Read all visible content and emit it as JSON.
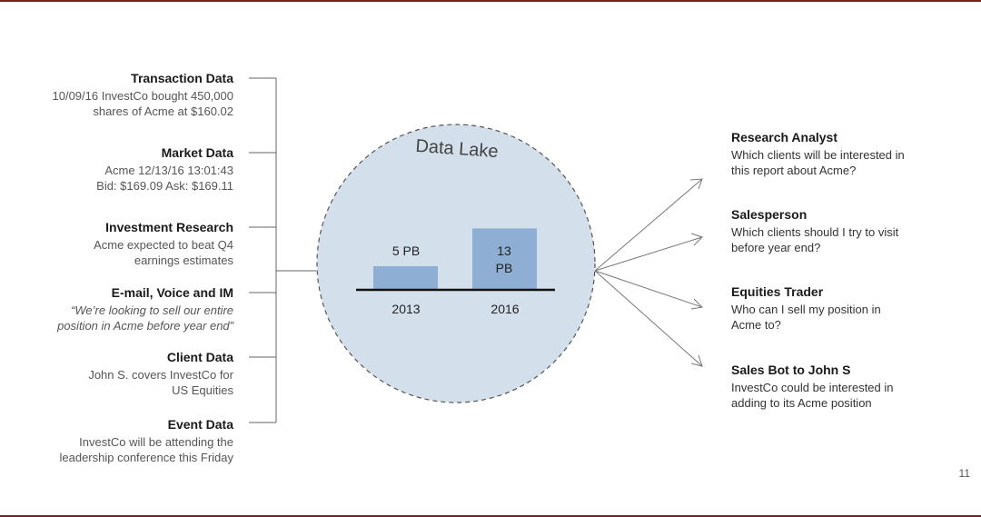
{
  "sources": [
    {
      "title": "Transaction Data",
      "lines": [
        "10/09/16 InvestCo bought 450,000",
        "shares of Acme at $160.02"
      ],
      "italic": false
    },
    {
      "title": "Market Data",
      "lines": [
        "Acme 12/13/16 13:01:43",
        "Bid: $169.09 Ask: $169.11"
      ],
      "italic": false
    },
    {
      "title": "Investment Research",
      "lines": [
        "Acme expected to beat Q4",
        "earnings estimates"
      ],
      "italic": false
    },
    {
      "title": "E-mail, Voice and IM",
      "lines": [
        "“We’re looking to sell our entire",
        "position in Acme before year end”"
      ],
      "italic": true
    },
    {
      "title": "Client Data",
      "lines": [
        "John S. covers InvestCo for",
        "US Equities"
      ],
      "italic": false
    },
    {
      "title": "Event Data",
      "lines": [
        "InvestCo will be attending the",
        "leadership conference this Friday"
      ],
      "italic": false
    }
  ],
  "lake": {
    "title": "Data Lake",
    "fill_color": "#d3dfea",
    "bar_color": "#8eaed3",
    "bars": [
      {
        "year": "2013",
        "label_lines": [
          "5 PB"
        ],
        "value": 5
      },
      {
        "year": "2016",
        "label_lines": [
          "13",
          "PB"
        ],
        "value": 13
      }
    ]
  },
  "outputs": [
    {
      "title": "Research Analyst",
      "lines": [
        "Which clients will be interested in",
        "this report about Acme?"
      ]
    },
    {
      "title": "Salesperson",
      "lines": [
        "Which clients should I try to visit",
        "before year end?"
      ]
    },
    {
      "title": "Equities Trader",
      "lines": [
        "Who can I sell my position in",
        "Acme to?"
      ]
    },
    {
      "title": "Sales Bot to John S",
      "lines": [
        "InvestCo could be interested in",
        "adding to its Acme position"
      ]
    }
  ],
  "page_number": "11"
}
